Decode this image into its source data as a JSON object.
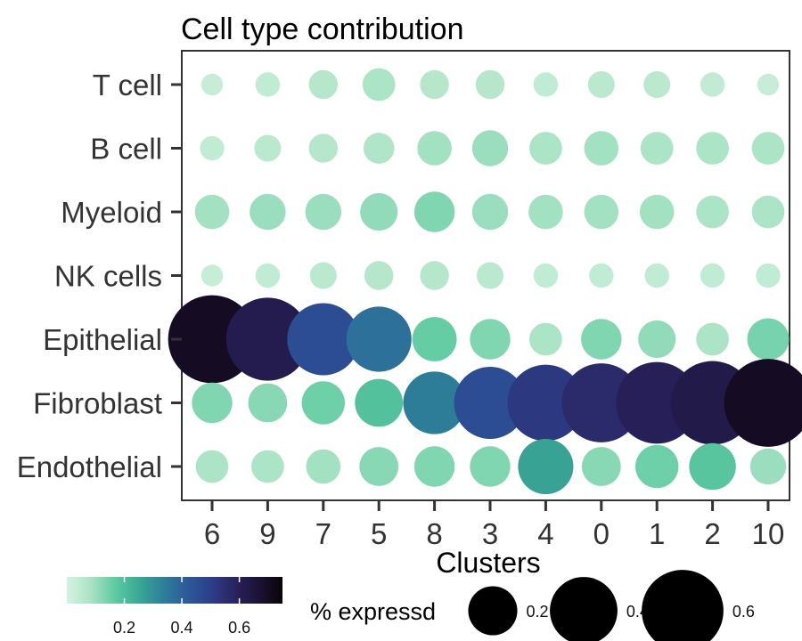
{
  "chart_data": {
    "type": "dotplot",
    "title": "Cell type contribution",
    "xlabel": "Clusters",
    "ylabel": "",
    "clusters": [
      "6",
      "9",
      "7",
      "5",
      "8",
      "3",
      "4",
      "0",
      "1",
      "2",
      "10"
    ],
    "cell_types": [
      "T cell",
      "B cell",
      "Myeloid",
      "NK cells",
      "Epithelial",
      "Fibroblast",
      "Endothelial"
    ],
    "pct_expressed": [
      [
        0.03,
        0.04,
        0.06,
        0.08,
        0.06,
        0.06,
        0.04,
        0.05,
        0.05,
        0.04,
        0.03
      ],
      [
        0.04,
        0.05,
        0.06,
        0.07,
        0.09,
        0.1,
        0.08,
        0.09,
        0.08,
        0.08,
        0.08
      ],
      [
        0.09,
        0.1,
        0.1,
        0.11,
        0.13,
        0.1,
        0.09,
        0.09,
        0.09,
        0.08,
        0.08
      ],
      [
        0.03,
        0.04,
        0.05,
        0.06,
        0.06,
        0.05,
        0.04,
        0.04,
        0.04,
        0.04,
        0.04
      ],
      [
        0.7,
        0.62,
        0.46,
        0.37,
        0.16,
        0.13,
        0.08,
        0.13,
        0.11,
        0.08,
        0.14
      ],
      [
        0.13,
        0.12,
        0.15,
        0.19,
        0.34,
        0.46,
        0.52,
        0.56,
        0.6,
        0.63,
        0.7
      ],
      [
        0.08,
        0.08,
        0.09,
        0.12,
        0.13,
        0.13,
        0.26,
        0.12,
        0.15,
        0.18,
        0.1
      ]
    ],
    "color_legend": {
      "title": "",
      "ticks": [
        0.2,
        0.4,
        0.6
      ],
      "range": [
        0.0,
        0.75
      ]
    },
    "size_legend": {
      "title": "% expressd",
      "values": [
        0.2,
        0.4,
        0.6
      ]
    },
    "palette": [
      "#d6f2e0",
      "#a9e3c6",
      "#5ecba1",
      "#3aa894",
      "#2d8098",
      "#2d5b9c",
      "#2c3e8a",
      "#2a2460",
      "#1c1236",
      "#0a0406"
    ]
  }
}
